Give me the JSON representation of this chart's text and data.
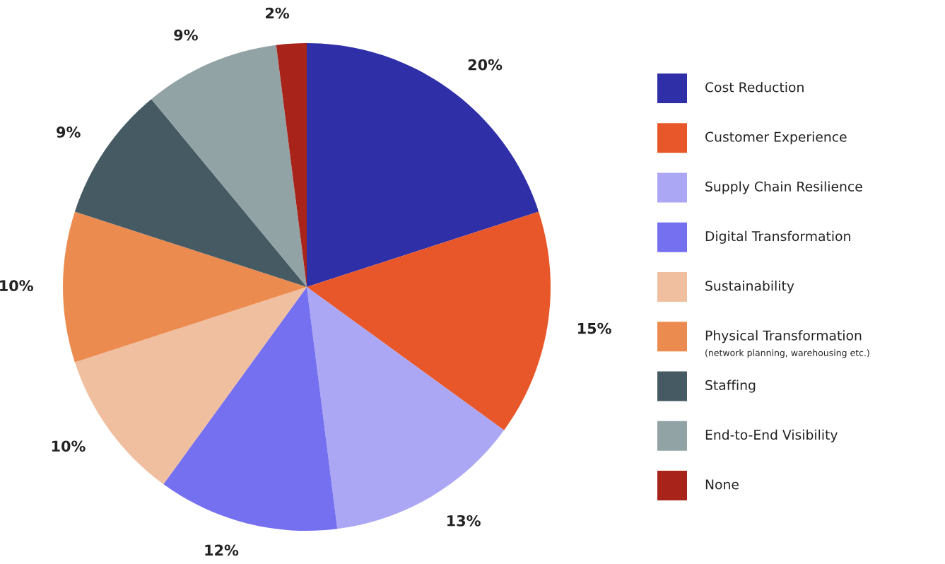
{
  "chart_data": {
    "type": "pie",
    "categories": [
      "Cost Reduction",
      "Customer Experience",
      "Supply Chain Resilience",
      "Digital Transformation",
      "Sustainability",
      "Physical Transformation",
      "Staffing",
      "End-to-End Visibility",
      "None"
    ],
    "values": [
      20,
      15,
      13,
      12,
      10,
      10,
      9,
      9,
      2
    ],
    "value_labels": [
      "20%",
      "15%",
      "13%",
      "12%",
      "10%",
      "10%",
      "9%",
      "9%",
      "2%"
    ],
    "colors": [
      "#2f2fa8",
      "#e8572a",
      "#aba7f5",
      "#7570f0",
      "#f0bf9f",
      "#ec8b4f",
      "#465a63",
      "#92a3a6",
      "#a8231a"
    ],
    "annotations": [
      "(network planning, warehousing etc.)"
    ],
    "legend": "right"
  }
}
